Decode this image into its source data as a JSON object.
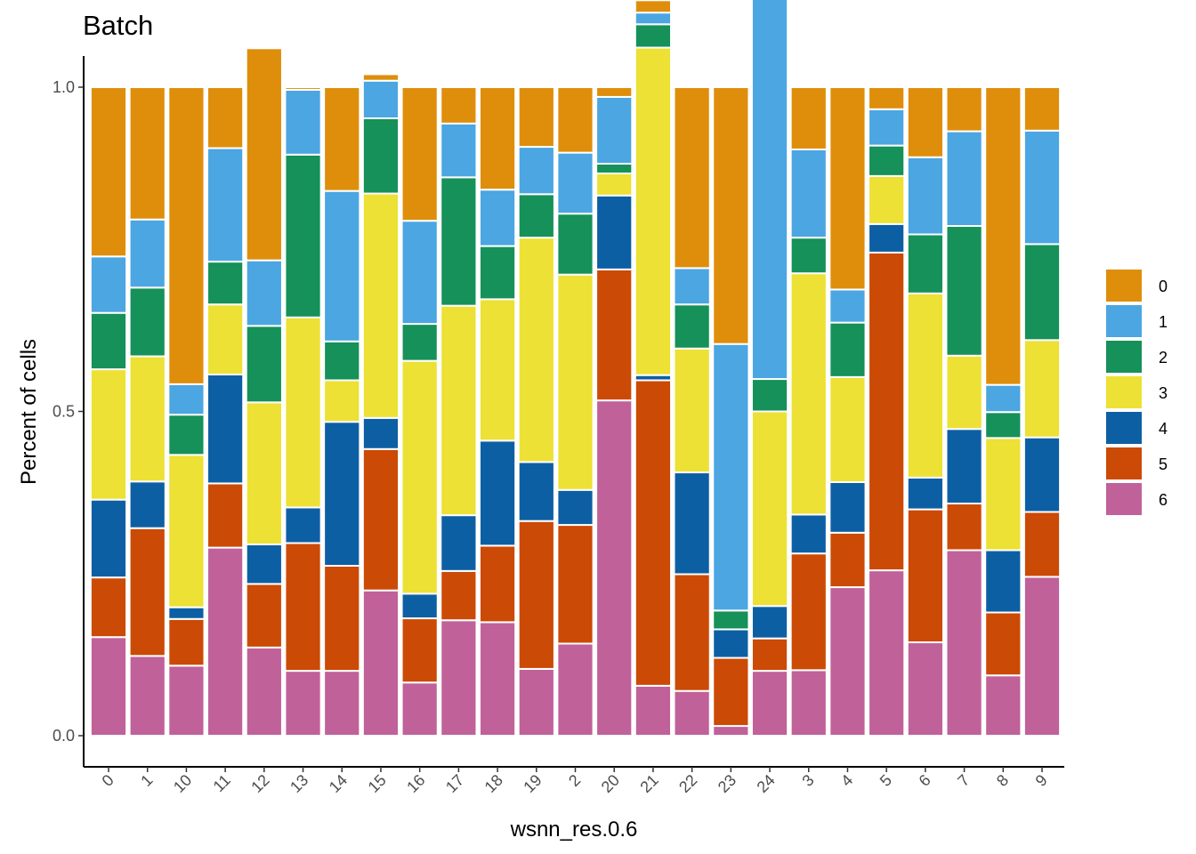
{
  "chart_data": {
    "type": "bar",
    "stacked": true,
    "title": "Batch",
    "xlabel": "wsnn_res.0.6",
    "ylabel": "Percent of cells",
    "ylim": [
      0,
      1.0
    ],
    "yticks": [
      0.0,
      0.5,
      1.0
    ],
    "ytick_labels": [
      "0.0",
      "0.5",
      "1.0"
    ],
    "grid": false,
    "legend_position": "right",
    "categories": [
      "0",
      "1",
      "10",
      "11",
      "12",
      "13",
      "14",
      "15",
      "16",
      "17",
      "18",
      "19",
      "2",
      "20",
      "21",
      "22",
      "23",
      "24",
      "3",
      "4",
      "5",
      "6",
      "7",
      "8",
      "9"
    ],
    "series": [
      {
        "name": "6",
        "color": "#C0619A",
        "values": [
          0.152,
          0.123,
          0.108,
          0.29,
          0.136,
          0.1,
          0.1,
          0.224,
          0.082,
          0.178,
          0.175,
          0.103,
          0.142,
          0.517,
          0.077,
          0.069,
          0.015,
          0.1,
          0.101,
          0.229,
          0.255,
          0.144,
          0.286,
          0.093,
          0.245
        ]
      },
      {
        "name": "5",
        "color": "#CB4A05",
        "values": [
          0.092,
          0.197,
          0.072,
          0.099,
          0.098,
          0.197,
          0.162,
          0.218,
          0.099,
          0.076,
          0.118,
          0.228,
          0.183,
          0.202,
          0.471,
          0.18,
          0.105,
          0.05,
          0.18,
          0.084,
          0.49,
          0.205,
          0.072,
          0.097,
          0.1
        ]
      },
      {
        "name": "4",
        "color": "#0D5FA4",
        "values": [
          0.12,
          0.072,
          0.018,
          0.168,
          0.061,
          0.055,
          0.222,
          0.048,
          0.038,
          0.086,
          0.162,
          0.091,
          0.054,
          0.114,
          0.008,
          0.157,
          0.044,
          0.05,
          0.06,
          0.078,
          0.044,
          0.049,
          0.115,
          0.096,
          0.115
        ]
      },
      {
        "name": "3",
        "color": "#ECE134",
        "values": [
          0.201,
          0.193,
          0.235,
          0.108,
          0.219,
          0.293,
          0.064,
          0.346,
          0.359,
          0.323,
          0.218,
          0.346,
          0.332,
          0.034,
          0.505,
          0.191,
          0.0,
          0.3,
          0.372,
          0.162,
          0.074,
          0.284,
          0.113,
          0.173,
          0.15
        ]
      },
      {
        "name": "2",
        "color": "#159159",
        "values": [
          0.087,
          0.106,
          0.062,
          0.066,
          0.118,
          0.251,
          0.06,
          0.116,
          0.057,
          0.198,
          0.082,
          0.067,
          0.094,
          0.015,
          0.036,
          0.068,
          0.029,
          0.05,
          0.055,
          0.084,
          0.047,
          0.091,
          0.2,
          0.04,
          0.148
        ]
      },
      {
        "name": "1",
        "color": "#4BA6E2",
        "values": [
          0.087,
          0.105,
          0.047,
          0.175,
          0.101,
          0.1,
          0.232,
          0.058,
          0.159,
          0.083,
          0.087,
          0.073,
          0.094,
          0.103,
          0.018,
          0.056,
          0.411,
          0.59,
          0.136,
          0.051,
          0.056,
          0.119,
          0.146,
          0.042,
          0.175
        ]
      },
      {
        "name": "0",
        "color": "#DF8E0B",
        "values": [
          0.261,
          0.204,
          0.458,
          0.094,
          0.327,
          0.004,
          0.16,
          0.01,
          0.206,
          0.056,
          0.158,
          0.092,
          0.101,
          0.015,
          0.019,
          0.279,
          0.396,
          0.0,
          0.096,
          0.312,
          0.034,
          0.108,
          0.068,
          0.459,
          0.067
        ]
      }
    ],
    "legend": [
      "0",
      "1",
      "2",
      "3",
      "4",
      "5",
      "6"
    ]
  }
}
